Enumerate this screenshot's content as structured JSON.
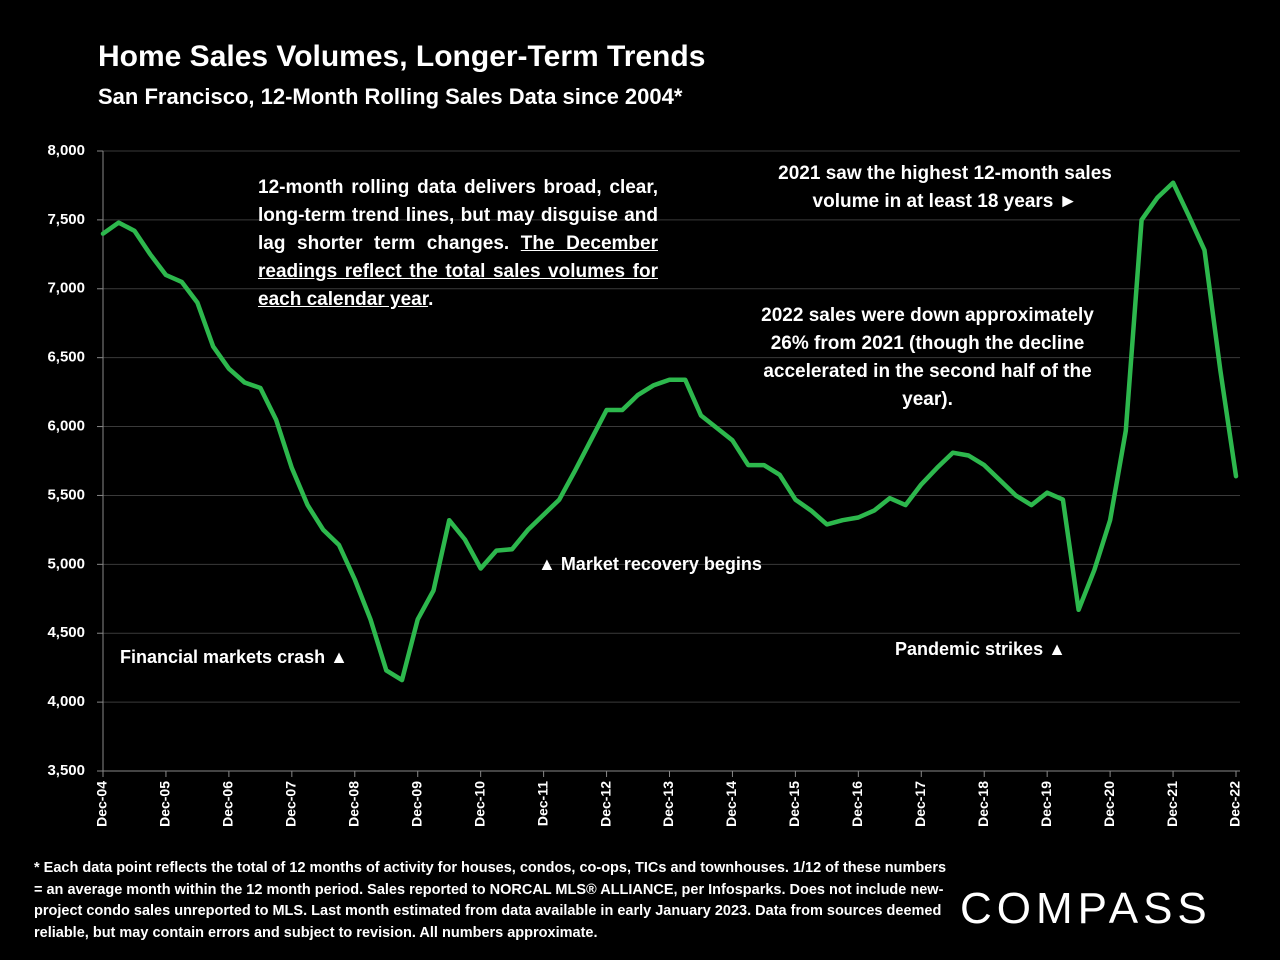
{
  "chart_data": {
    "type": "line",
    "title": "Home Sales Volumes, Longer-Term Trends",
    "subtitle": "San Francisco, 12-Month Rolling Sales Data since 2004*",
    "categories": [
      "Dec-04",
      null,
      null,
      null,
      "Dec-05",
      null,
      null,
      null,
      "Dec-06",
      null,
      null,
      null,
      "Dec-07",
      null,
      null,
      null,
      "Dec-08",
      null,
      null,
      null,
      "Dec-09",
      null,
      null,
      null,
      "Dec-10",
      null,
      null,
      null,
      "Dec-11",
      null,
      null,
      null,
      "Dec-12",
      null,
      null,
      null,
      "Dec-13",
      null,
      null,
      null,
      "Dec-14",
      null,
      null,
      null,
      "Dec-15",
      null,
      null,
      null,
      "Dec-16",
      null,
      null,
      null,
      "Dec-17",
      null,
      null,
      null,
      "Dec-18",
      null,
      null,
      null,
      "Dec-19",
      null,
      null,
      null,
      "Dec-20",
      null,
      null,
      null,
      "Dec-21",
      null,
      null,
      null,
      "Dec-22"
    ],
    "values": [
      7400,
      7480,
      7420,
      7250,
      7100,
      7050,
      6900,
      6580,
      6420,
      6320,
      6280,
      6050,
      5700,
      5430,
      5250,
      5140,
      4890,
      4600,
      4230,
      4160,
      4600,
      4810,
      5320,
      5180,
      4970,
      5100,
      5110,
      5250,
      5360,
      5470,
      5680,
      5900,
      6120,
      6120,
      6230,
      6300,
      6340,
      6340,
      6080,
      5990,
      5900,
      5720,
      5720,
      5650,
      5470,
      5390,
      5290,
      5320,
      5340,
      5390,
      5480,
      5430,
      5580,
      5700,
      5810,
      5790,
      5720,
      5610,
      5500,
      5430,
      5520,
      5470,
      4670,
      4960,
      5320,
      5970,
      7500,
      7660,
      7770,
      7530,
      7280,
      6410,
      5640
    ],
    "color": "#2db84d",
    "ylim": [
      3500,
      8000
    ],
    "yticks": [
      {
        "value": 3500,
        "label": "3,500"
      },
      {
        "value": 4000,
        "label": "4,000"
      },
      {
        "value": 4500,
        "label": "4,500"
      },
      {
        "value": 5000,
        "label": "5,000"
      },
      {
        "value": 5500,
        "label": "5,500"
      },
      {
        "value": 6000,
        "label": "6,000"
      },
      {
        "value": 6500,
        "label": "6,500"
      },
      {
        "value": 7000,
        "label": "7,000"
      },
      {
        "value": 7500,
        "label": "7,500"
      },
      {
        "value": 8000,
        "label": "8,000"
      }
    ],
    "grid": true,
    "annotations": {
      "rolling_note": "12-month rolling data delivers broad, clear, long-term trend lines, but may disguise and lag shorter term changes.",
      "rolling_note_underlined": "The December readings reflect the total sales volumes for each calendar year",
      "rolling_note_end": ".",
      "highest": "2021 saw the highest 12-month sales volume in at least 18 years ►",
      "decline": "2022 sales were down approximately 26% from 2021 (though the decline accelerated in the second half of the year).",
      "crash": "Financial markets crash ▲",
      "recovery": "▲ Market recovery begins",
      "pandemic": "Pandemic strikes ▲"
    },
    "footnote": "* Each data point reflects the total of 12 months of activity for houses, condos, co-ops, TICs and townhouses. 1/12 of these numbers = an average month within the 12 month period. Sales reported to NORCAL MLS® ALLIANCE, per Infosparks. Does not include new-project condo sales unreported to MLS. Last month estimated from data available in early January 2023. Data from sources deemed reliable, but may contain errors and subject to revision. All numbers approximate.",
    "logo": "COMPASS"
  }
}
